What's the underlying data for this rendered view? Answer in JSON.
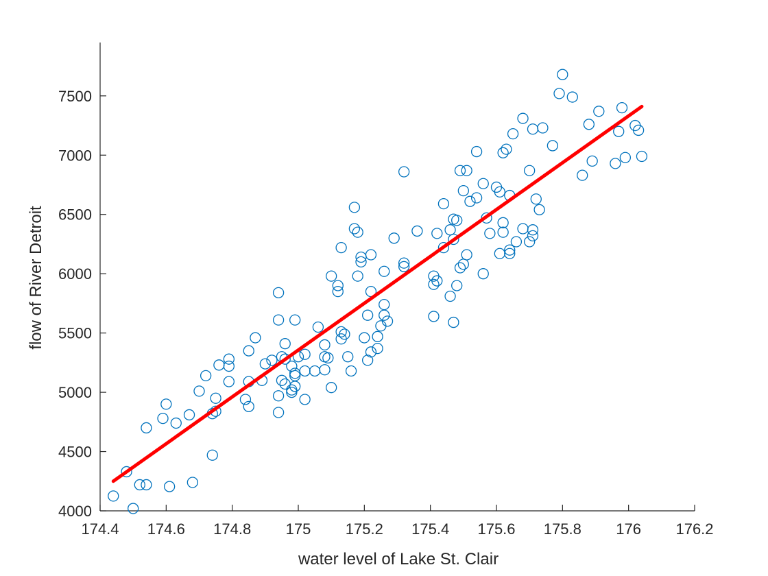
{
  "chart_data": {
    "type": "scatter",
    "title": "",
    "xlabel": "water level of Lake St. Clair",
    "ylabel": "flow of River Detroit",
    "xlim": [
      174.4,
      176.2
    ],
    "ylim": [
      4000,
      7950
    ],
    "xticks": [
      174.4,
      174.6,
      174.8,
      175,
      175.2,
      175.4,
      175.6,
      175.8,
      176,
      176.2
    ],
    "xtick_labels": [
      "174.4",
      "174.6",
      "174.8",
      "175",
      "175.2",
      "175.4",
      "175.6",
      "175.8",
      "176",
      "176.2"
    ],
    "yticks": [
      4000,
      4500,
      5000,
      5500,
      6000,
      6500,
      7000,
      7500
    ],
    "ytick_labels": [
      "4000",
      "4500",
      "5000",
      "5500",
      "6000",
      "6500",
      "7000",
      "7500"
    ],
    "grid": false,
    "legend": "none",
    "series": [
      {
        "kind": "scatter",
        "marker": "circle",
        "color": "#0072BD",
        "x": [
          174.44,
          174.48,
          174.5,
          174.52,
          174.54,
          174.54,
          174.59,
          174.6,
          174.61,
          174.63,
          174.67,
          174.68,
          174.7,
          174.72,
          174.74,
          174.74,
          174.75,
          174.75,
          174.76,
          174.79,
          174.79,
          174.79,
          174.84,
          174.85,
          174.85,
          174.85,
          174.87,
          174.89,
          174.9,
          174.92,
          174.94,
          174.94,
          174.94,
          174.94,
          174.95,
          174.95,
          174.96,
          174.96,
          174.96,
          174.98,
          174.98,
          174.98,
          174.99,
          174.99,
          174.99,
          174.99,
          175.0,
          175.02,
          175.02,
          175.02,
          175.05,
          175.06,
          175.08,
          175.08,
          175.08,
          175.09,
          175.1,
          175.1,
          175.12,
          175.12,
          175.13,
          175.13,
          175.13,
          175.14,
          175.15,
          175.16,
          175.17,
          175.17,
          175.18,
          175.18,
          175.19,
          175.19,
          175.2,
          175.21,
          175.21,
          175.22,
          175.22,
          175.22,
          175.24,
          175.24,
          175.25,
          175.26,
          175.26,
          175.26,
          175.27,
          175.29,
          175.32,
          175.32,
          175.32,
          175.36,
          175.41,
          175.41,
          175.41,
          175.42,
          175.42,
          175.44,
          175.44,
          175.46,
          175.46,
          175.47,
          175.47,
          175.47,
          175.48,
          175.48,
          175.49,
          175.49,
          175.5,
          175.5,
          175.51,
          175.51,
          175.52,
          175.54,
          175.54,
          175.56,
          175.56,
          175.57,
          175.58,
          175.6,
          175.61,
          175.61,
          175.62,
          175.62,
          175.62,
          175.63,
          175.64,
          175.64,
          175.64,
          175.65,
          175.66,
          175.68,
          175.68,
          175.7,
          175.7,
          175.71,
          175.71,
          175.71,
          175.72,
          175.73,
          175.74,
          175.77,
          175.79,
          175.8,
          175.83,
          175.86,
          175.88,
          175.89,
          175.91,
          175.96,
          175.97,
          175.98,
          175.99,
          176.02,
          176.03,
          176.04
        ],
        "y": [
          4125,
          4330,
          4020,
          4220,
          4700,
          4220,
          4780,
          4900,
          4205,
          4740,
          4810,
          4240,
          5010,
          5140,
          4470,
          4820,
          4840,
          4950,
          5230,
          5090,
          5220,
          5280,
          4940,
          4880,
          5090,
          5350,
          5460,
          5100,
          5240,
          5270,
          4830,
          4970,
          5610,
          5840,
          5100,
          5300,
          5070,
          5280,
          5410,
          5020,
          5000,
          5220,
          5050,
          5140,
          5160,
          5610,
          5300,
          4940,
          5180,
          5320,
          5180,
          5550,
          5190,
          5300,
          5400,
          5290,
          5040,
          5980,
          5850,
          5900,
          5450,
          5510,
          6220,
          5490,
          5300,
          5180,
          6560,
          6380,
          6350,
          5980,
          6100,
          6140,
          5460,
          5270,
          5650,
          5850,
          6160,
          5340,
          5370,
          5470,
          5560,
          5740,
          5650,
          6020,
          5600,
          6300,
          6060,
          6090,
          6860,
          6360,
          5640,
          5910,
          5980,
          5940,
          6340,
          6220,
          6590,
          5810,
          6370,
          5590,
          6290,
          6460,
          5900,
          6450,
          6050,
          6870,
          6080,
          6700,
          6160,
          6870,
          6610,
          6640,
          7030,
          6000,
          6760,
          6470,
          6340,
          6730,
          6170,
          6690,
          6350,
          6430,
          7020,
          7050,
          6660,
          6170,
          6200,
          7180,
          6270,
          7310,
          6380,
          6870,
          6270,
          6320,
          6370,
          7220,
          6630,
          6540,
          7230,
          7080,
          7520,
          7680,
          7490,
          6830,
          7260,
          6950,
          7370,
          6930,
          7200,
          7400,
          6980,
          7250,
          7210,
          6990
        ]
      },
      {
        "kind": "fit-line",
        "color": "#FF0000",
        "x": [
          174.44,
          176.04
        ],
        "y": [
          4250,
          7410
        ]
      }
    ]
  }
}
